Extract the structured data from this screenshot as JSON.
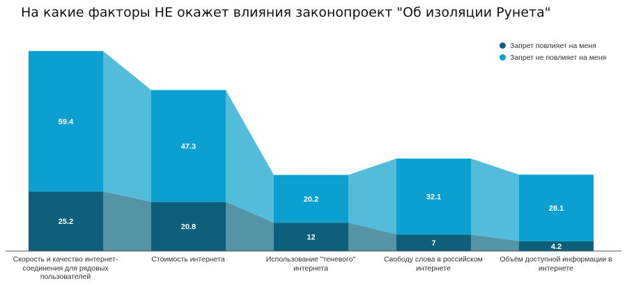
{
  "chart_data": {
    "type": "bar",
    "stacked": true,
    "title": "На какие факторы НЕ окажет влияния законопроект \"Об изоляции Рунета\"",
    "categories": [
      "Скорость и качество интернет-соединения для рядовых пользователей",
      "Стоимость интернета",
      "Использование \"теневого\" интернета",
      "Свободу слова в российском интернете",
      "Объём доступной информации в интернете"
    ],
    "series": [
      {
        "name": "Запрет повлияет на меня",
        "color": "#0d5f7a",
        "values": [
          25.2,
          20.8,
          12,
          7,
          4.2
        ]
      },
      {
        "name": "Запрет не повлияет на меня",
        "color": "#0ba0cf",
        "values": [
          59.4,
          47.3,
          20.2,
          32.1,
          28.1
        ]
      }
    ],
    "ylim": [
      0,
      90
    ],
    "grid": false,
    "legend": "top-right",
    "connectors": true
  }
}
